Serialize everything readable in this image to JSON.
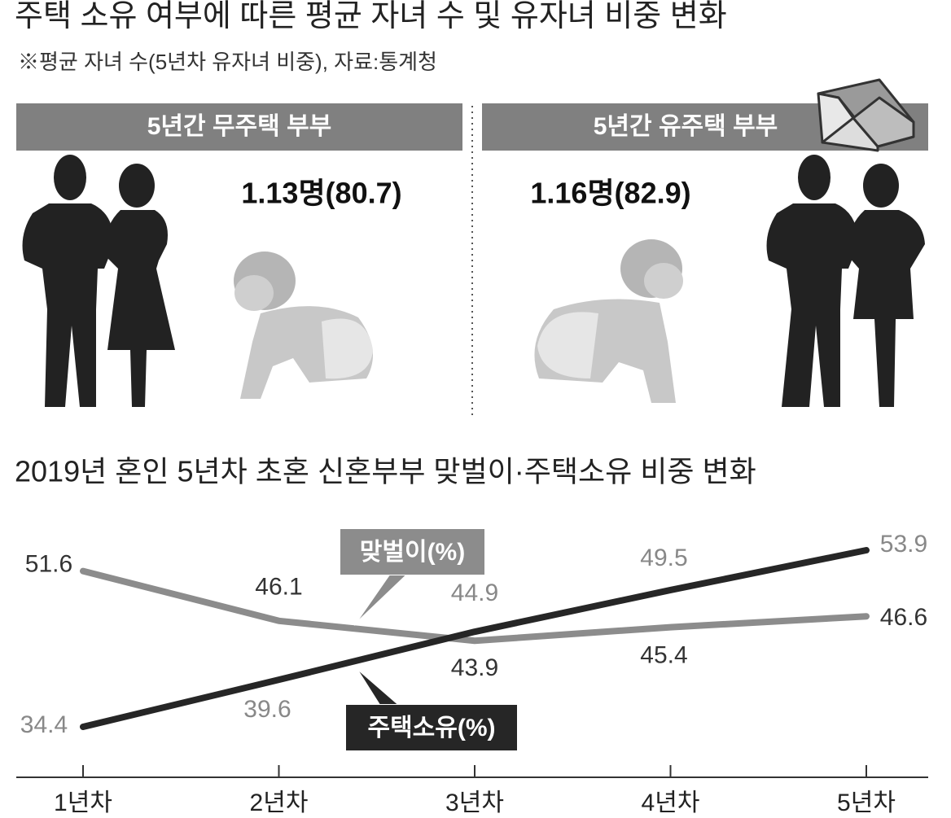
{
  "header": {
    "title": "주택 소유 여부에 따른 평균 자녀 수 및 유자녀 비중 변화",
    "subtitle": "※평균 자녀 수(5년차 유자녀 비중), 자료:통계청"
  },
  "panels": [
    {
      "label": "5년간 무주택 부부",
      "value": "1.13명(80.7)"
    },
    {
      "label": "5년간 유주택 부부",
      "value": "1.16명(82.9)"
    }
  ],
  "chart_data": {
    "type": "line",
    "title": "2019년 혼인 5년차 초혼 신혼부부 맞벌이·주택소유 비중 변화",
    "categories": [
      "1년차",
      "2년차",
      "3년차",
      "4년차",
      "5년차"
    ],
    "series": [
      {
        "name": "맞벌이(%)",
        "color": "#8c8c8c",
        "values": [
          51.6,
          46.1,
          43.9,
          45.4,
          46.6
        ]
      },
      {
        "name": "주택소유(%)",
        "color": "#262626",
        "values": [
          34.4,
          39.6,
          44.9,
          49.5,
          53.9
        ]
      }
    ]
  }
}
